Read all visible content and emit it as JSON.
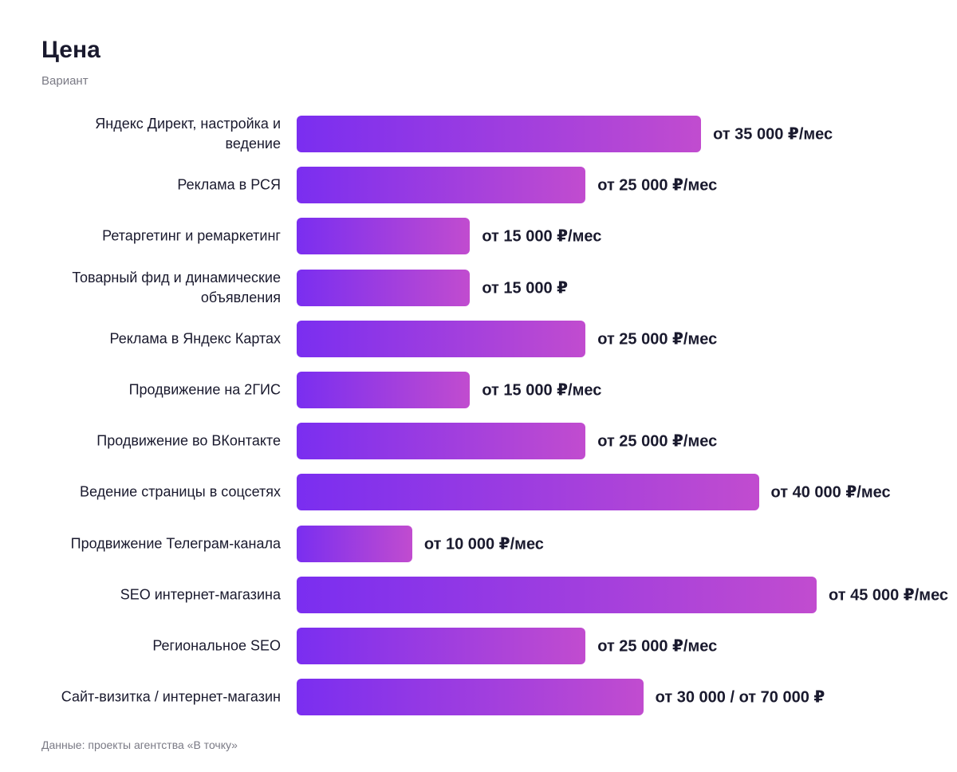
{
  "chart_data": {
    "type": "bar",
    "orientation": "horizontal",
    "title": "Цена",
    "subtitle": "Вариант",
    "source": "Данные: проекты агентства «В точку»",
    "categories": [
      "Яндекс Директ, настройка и ведение",
      "Реклама в РСЯ",
      "Ретаргетинг и ремаркетинг",
      "Товарный фид и динамические объявления",
      "Реклама в Яндекс Картах",
      "Продвижение на 2ГИС",
      "Продвижение во ВКонтакте",
      "Ведение страницы в соцсетях",
      "Продвижение Телеграм-канала",
      "SEO интернет-магазина",
      "Региональное SEO",
      "Сайт-визитка / интернет-магазин"
    ],
    "values": [
      35000,
      25000,
      15000,
      15000,
      25000,
      15000,
      25000,
      40000,
      10000,
      45000,
      25000,
      30000
    ],
    "value_labels": [
      "от 35 000 ₽/мес",
      "от 25 000 ₽/мес",
      "от 15 000 ₽/мес",
      "от 15 000 ₽",
      "от 25 000 ₽/мес",
      "от 15 000 ₽/мес",
      "от 25 000 ₽/мес",
      "от 40 000 ₽/мес",
      "от 10 000 ₽/мес",
      "от 45 000 ₽/мес",
      "от 25 000 ₽/мес",
      "от 30 000 / от 70 000 ₽"
    ],
    "xlim": [
      0,
      45000
    ],
    "colors": [
      "#7a2ef0",
      "#c14ccf"
    ]
  }
}
